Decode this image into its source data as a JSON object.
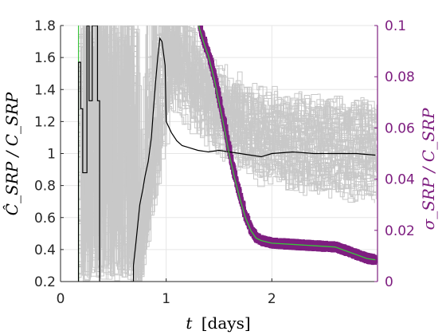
{
  "chart_data": {
    "type": "line",
    "title": "",
    "xlabel_var": "t",
    "xlabel_unit": "[days]",
    "ylabel_left": "Ĉ_SRP / C_SRP",
    "ylabel_right": "σ_SRP / C_SRP",
    "xlim": [
      0,
      3
    ],
    "ylim_left": [
      0.2,
      1.8
    ],
    "ylim_right": [
      0,
      0.1
    ],
    "x_ticks": [
      "0",
      "1",
      "2"
    ],
    "y_ticks_left": [
      "0.2",
      "0.4",
      "0.6",
      "0.8",
      "1",
      "1.2",
      "1.4",
      "1.6",
      "1.8"
    ],
    "y_ticks_right": [
      "0",
      "0.02",
      "0.04",
      "0.06",
      "0.08",
      "0.1"
    ],
    "grid": true,
    "colors": {
      "mean_estimate": "#000000",
      "monte_carlo_runs": "#c8c8c8",
      "sigma_runs": "#7e1e80",
      "sigma_mean": "#3cc23c",
      "start_marker": "#3cc23c",
      "right_axis": "#7e1e80"
    },
    "series": [
      {
        "role": "mean_estimate",
        "axis": "left",
        "x": [
          0.17,
          0.17,
          0.19,
          0.19,
          0.21,
          0.21,
          0.25,
          0.25,
          0.27,
          0.27,
          0.3,
          0.3,
          0.35,
          0.35,
          0.37,
          0.37,
          0.69,
          0.69,
          0.71,
          0.73,
          0.75,
          0.78,
          0.8,
          0.83,
          0.86,
          0.88,
          0.9,
          0.92,
          0.94,
          0.96,
          0.99,
          1.0,
          1.05,
          1.1,
          1.15,
          1.2,
          1.3,
          1.4,
          1.5,
          1.6,
          1.7,
          1.8,
          1.9,
          2.0,
          2.2,
          2.4,
          2.6,
          2.8,
          2.98
        ],
        "y": [
          0.2,
          1.57,
          1.57,
          1.28,
          1.28,
          0.88,
          0.88,
          1.8,
          1.8,
          1.33,
          1.33,
          1.8,
          1.8,
          1.33,
          1.33,
          0.2,
          0.2,
          0.3,
          0.42,
          0.55,
          0.68,
          0.78,
          0.86,
          0.95,
          1.1,
          1.28,
          1.45,
          1.6,
          1.72,
          1.7,
          1.55,
          1.2,
          1.13,
          1.08,
          1.05,
          1.04,
          1.02,
          1.01,
          1.02,
          1.01,
          1.0,
          0.99,
          0.98,
          1.0,
          1.01,
          1.0,
          1.0,
          1.0,
          0.99
        ]
      },
      {
        "role": "sigma_mean",
        "axis": "right",
        "x": [
          1.3,
          1.35,
          1.4,
          1.45,
          1.5,
          1.55,
          1.6,
          1.65,
          1.7,
          1.75,
          1.8,
          1.85,
          1.9,
          1.95,
          2.0,
          2.2,
          2.4,
          2.6,
          2.7,
          2.8,
          2.9,
          2.98
        ],
        "y": [
          0.101,
          0.094,
          0.088,
          0.08,
          0.07,
          0.06,
          0.049,
          0.04,
          0.032,
          0.025,
          0.02,
          0.017,
          0.016,
          0.0155,
          0.015,
          0.0145,
          0.014,
          0.0135,
          0.012,
          0.0105,
          0.009,
          0.0085
        ]
      }
    ]
  }
}
